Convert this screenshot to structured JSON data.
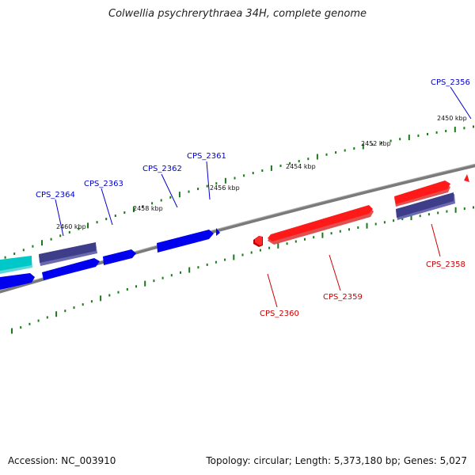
{
  "title": "Colwellia psychrerythraea 34H, complete genome",
  "footer": {
    "accession": "Accession: NC_003910",
    "summary": "Topology: circular; Length: 5,373,180 bp; Genes: 5,027"
  },
  "colors": {
    "forward_gene": "#ff0000",
    "reverse_gene": "#0000ee",
    "dark_gene": "#3d3d8a",
    "cyan_gene": "#00c8c8",
    "tick": "#1a7a1a",
    "backbone": "#7a7a7a",
    "label_red": "#cc0000",
    "label_blue": "#0000cc"
  },
  "kbp_labels": [
    "2450 kbp",
    "2452 kbp",
    "2454 kbp",
    "2456 kbp",
    "2458 kbp",
    "2460 kbp"
  ],
  "gene_labels": [
    "CPS_2356",
    "CPS_2358",
    "CPS_2359",
    "CPS_2360",
    "CPS_2361",
    "CPS_2362",
    "CPS_2363",
    "CPS_2364"
  ]
}
